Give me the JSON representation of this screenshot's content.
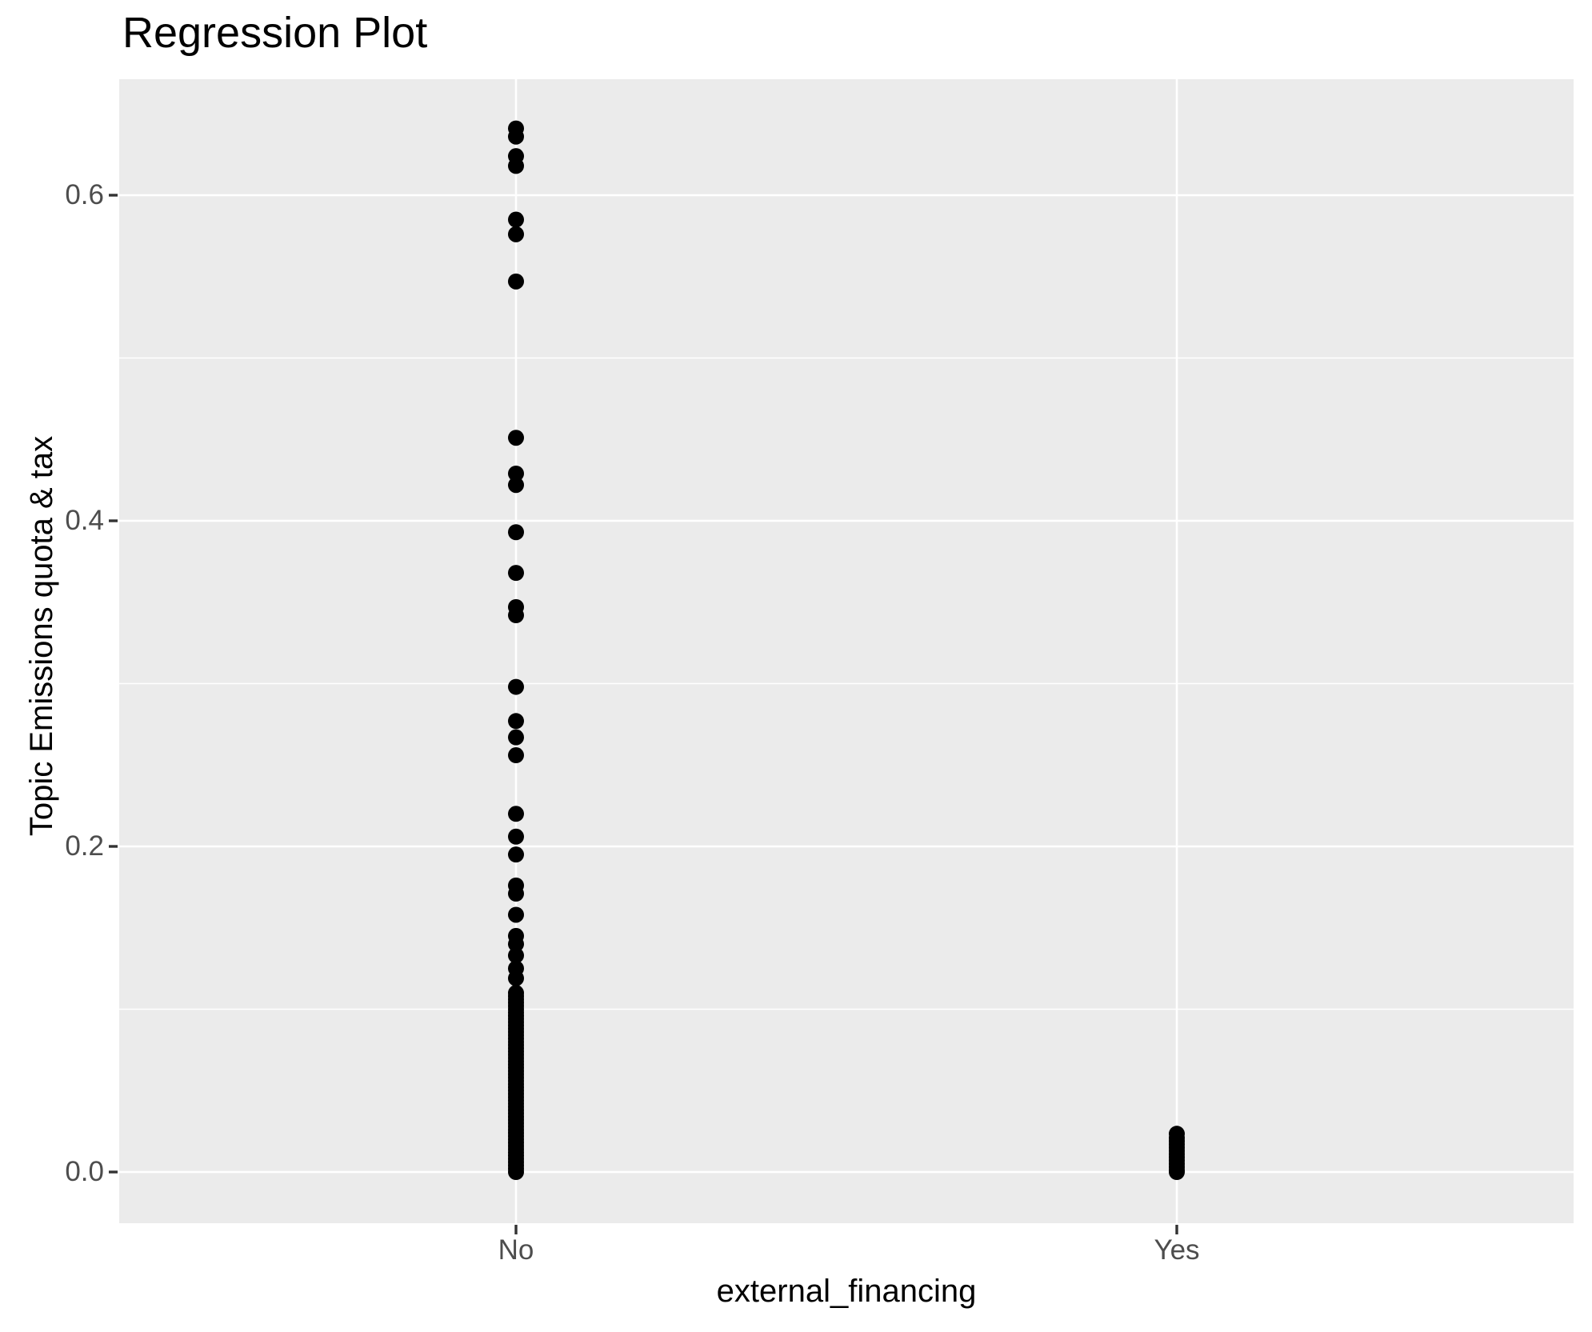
{
  "plot": {
    "title": "Regression Plot"
  },
  "chart_data": {
    "type": "scatter",
    "title": "Regression Plot",
    "xlabel": "external_financing",
    "ylabel": "Topic Emissions quota & tax",
    "categories": [
      "No",
      "Yes"
    ],
    "xtick_labels": [
      "No",
      "Yes"
    ],
    "ytick_labels": [
      "0.0",
      "0.2",
      "0.4",
      "0.6"
    ],
    "yticks": [
      0.0,
      0.2,
      0.4,
      0.6
    ],
    "yminor": [
      0.1,
      0.3,
      0.5
    ],
    "ylim": [
      -0.031,
      0.671
    ],
    "grid": "on",
    "legend": "none",
    "point_color": "#000000",
    "panel_color": "#EBEBEB",
    "grid_color": "#FFFFFF",
    "tick_color": "#333333",
    "tick_label_color": "#4D4D4D",
    "series": [
      {
        "name": "No",
        "values": [
          0.641,
          0.636,
          0.624,
          0.618,
          0.585,
          0.576,
          0.547,
          0.451,
          0.429,
          0.422,
          0.393,
          0.368,
          0.347,
          0.342,
          0.298,
          0.277,
          0.267,
          0.256,
          0.22,
          0.206,
          0.195,
          0.176,
          0.171,
          0.158,
          0.145,
          0.14,
          0.133,
          0.125,
          0.119,
          0.11,
          0.108,
          0.106,
          0.104,
          0.102,
          0.1,
          0.098,
          0.096,
          0.094,
          0.092,
          0.09,
          0.088,
          0.086,
          0.084,
          0.082,
          0.08,
          0.078,
          0.076,
          0.074,
          0.072,
          0.07,
          0.068,
          0.066,
          0.064,
          0.062,
          0.06,
          0.058,
          0.056,
          0.054,
          0.052,
          0.05,
          0.048,
          0.046,
          0.044,
          0.042,
          0.04,
          0.038,
          0.036,
          0.034,
          0.032,
          0.03,
          0.028,
          0.026,
          0.024,
          0.022,
          0.02,
          0.018,
          0.016,
          0.014,
          0.012,
          0.01,
          0.008,
          0.006,
          0.004,
          0.002,
          0.0
        ]
      },
      {
        "name": "Yes",
        "values": [
          0.0235,
          0.021,
          0.019,
          0.017,
          0.015,
          0.013,
          0.011,
          0.009,
          0.007,
          0.005,
          0.003,
          0.001,
          0.0
        ]
      }
    ]
  }
}
